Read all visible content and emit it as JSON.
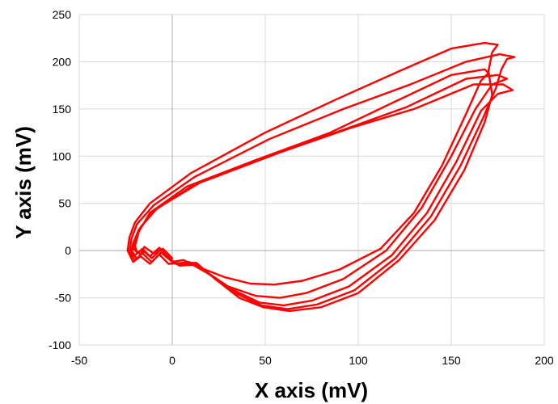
{
  "chart_data": {
    "type": "line",
    "title": "",
    "xlabel": "X axis (mV)",
    "ylabel": "Y axis (mV)",
    "xlim": [
      -50,
      200
    ],
    "ylim": [
      -100,
      250
    ],
    "xticks": [
      "-50",
      "0",
      "50",
      "100",
      "150",
      "200"
    ],
    "yticks": [
      "-100",
      "-50",
      "0",
      "50",
      "100",
      "150",
      "200",
      "250"
    ],
    "grid": true,
    "legend": "none",
    "colors": {
      "series": "#ff0000",
      "grid": "#d9d9d9",
      "zero_line": "#b0b0b0"
    },
    "series": [
      {
        "color": "#ff0000",
        "points": [
          [
            0,
            -12
          ],
          [
            6,
            -10
          ],
          [
            15,
            -18
          ],
          [
            28,
            -28
          ],
          [
            42,
            -35
          ],
          [
            55,
            -36
          ],
          [
            70,
            -32
          ],
          [
            90,
            -20
          ],
          [
            112,
            2
          ],
          [
            130,
            40
          ],
          [
            145,
            90
          ],
          [
            158,
            145
          ],
          [
            166,
            180
          ],
          [
            170,
            188
          ],
          [
            168,
            192
          ],
          [
            150,
            186
          ],
          [
            120,
            158
          ],
          [
            85,
            125
          ],
          [
            45,
            96
          ],
          [
            8,
            68
          ],
          [
            -12,
            40
          ],
          [
            -18,
            20
          ],
          [
            -20,
            5
          ],
          [
            -19,
            -2
          ],
          [
            -21,
            3
          ],
          [
            -17,
            -4
          ],
          [
            -15,
            4
          ],
          [
            -10,
            -3
          ],
          [
            -5,
            2
          ],
          [
            0,
            -8
          ]
        ]
      },
      {
        "color": "#ff0000",
        "points": [
          [
            2,
            -14
          ],
          [
            9,
            -12
          ],
          [
            18,
            -22
          ],
          [
            30,
            -38
          ],
          [
            45,
            -48
          ],
          [
            58,
            -50
          ],
          [
            72,
            -45
          ],
          [
            92,
            -30
          ],
          [
            115,
            0
          ],
          [
            134,
            45
          ],
          [
            150,
            100
          ],
          [
            163,
            150
          ],
          [
            172,
            176
          ],
          [
            180,
            182
          ],
          [
            175,
            186
          ],
          [
            158,
            182
          ],
          [
            126,
            152
          ],
          [
            92,
            128
          ],
          [
            52,
            100
          ],
          [
            12,
            70
          ],
          [
            -10,
            42
          ],
          [
            -18,
            22
          ],
          [
            -21,
            8
          ],
          [
            -22,
            0
          ],
          [
            -20,
            -5
          ],
          [
            -16,
            2
          ],
          [
            -12,
            -6
          ],
          [
            -7,
            3
          ],
          [
            -3,
            -5
          ],
          [
            2,
            -14
          ]
        ]
      },
      {
        "color": "#ff0000",
        "points": [
          [
            4,
            -16
          ],
          [
            11,
            -15
          ],
          [
            20,
            -25
          ],
          [
            33,
            -42
          ],
          [
            47,
            -55
          ],
          [
            60,
            -58
          ],
          [
            75,
            -53
          ],
          [
            95,
            -38
          ],
          [
            118,
            -5
          ],
          [
            137,
            40
          ],
          [
            153,
            95
          ],
          [
            166,
            148
          ],
          [
            175,
            166
          ],
          [
            183,
            170
          ],
          [
            178,
            176
          ],
          [
            162,
            176
          ],
          [
            130,
            150
          ],
          [
            96,
            130
          ],
          [
            58,
            104
          ],
          [
            15,
            72
          ],
          [
            -8,
            45
          ],
          [
            -17,
            25
          ],
          [
            -20,
            10
          ],
          [
            -22,
            -3
          ],
          [
            -19,
            -8
          ],
          [
            -15,
            -1
          ],
          [
            -11,
            -8
          ],
          [
            -6,
            1
          ],
          [
            -1,
            -10
          ],
          [
            4,
            -16
          ]
        ]
      },
      {
        "color": "#ff0000",
        "points": [
          [
            5,
            -15
          ],
          [
            12,
            -14
          ],
          [
            22,
            -28
          ],
          [
            35,
            -46
          ],
          [
            48,
            -58
          ],
          [
            62,
            -62
          ],
          [
            78,
            -57
          ],
          [
            98,
            -42
          ],
          [
            120,
            -8
          ],
          [
            139,
            36
          ],
          [
            155,
            90
          ],
          [
            167,
            140
          ],
          [
            174,
            172
          ],
          [
            177,
            192
          ],
          [
            180,
            203
          ],
          [
            184,
            205
          ],
          [
            176,
            208
          ],
          [
            158,
            200
          ],
          [
            128,
            176
          ],
          [
            92,
            150
          ],
          [
            52,
            118
          ],
          [
            12,
            78
          ],
          [
            -10,
            48
          ],
          [
            -19,
            28
          ],
          [
            -22,
            12
          ],
          [
            -23,
            -2
          ],
          [
            -20,
            -10
          ],
          [
            -16,
            -3
          ],
          [
            -11,
            -12
          ],
          [
            -6,
            -2
          ],
          [
            0,
            -12
          ],
          [
            5,
            -15
          ]
        ]
      },
      {
        "color": "#ff0000",
        "points": [
          [
            6,
            -13
          ],
          [
            13,
            -13
          ],
          [
            23,
            -30
          ],
          [
            36,
            -50
          ],
          [
            49,
            -60
          ],
          [
            63,
            -64
          ],
          [
            80,
            -60
          ],
          [
            100,
            -45
          ],
          [
            122,
            -10
          ],
          [
            141,
            32
          ],
          [
            157,
            85
          ],
          [
            168,
            136
          ],
          [
            172,
            165
          ],
          [
            170,
            190
          ],
          [
            172,
            210
          ],
          [
            175,
            218
          ],
          [
            168,
            220
          ],
          [
            150,
            214
          ],
          [
            122,
            190
          ],
          [
            88,
            160
          ],
          [
            50,
            125
          ],
          [
            10,
            82
          ],
          [
            -12,
            50
          ],
          [
            -20,
            30
          ],
          [
            -23,
            14
          ],
          [
            -24,
            0
          ],
          [
            -21,
            -12
          ],
          [
            -17,
            -6
          ],
          [
            -12,
            -14
          ],
          [
            -7,
            -4
          ],
          [
            -2,
            -14
          ],
          [
            6,
            -13
          ]
        ]
      }
    ]
  }
}
